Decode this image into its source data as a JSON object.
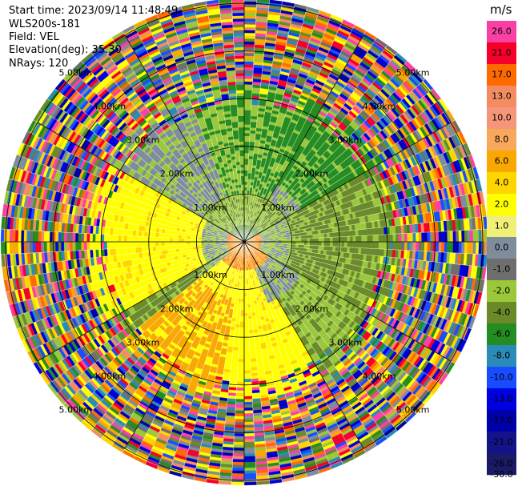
{
  "header": {
    "start_time": "Start time: 2023/09/14 11:48:49",
    "instrument": "WLS200s-181",
    "field": "Field: VEL",
    "elevation": "Elevation(deg): 35.30",
    "nrays": "NRays: 120"
  },
  "chart_data": {
    "type": "heatmap",
    "projection": "polar-ppi",
    "field": "VEL",
    "units": "m/s",
    "n_rays": 120,
    "range_rings_km": [
      1,
      2,
      3,
      4,
      5
    ],
    "ring_labels": [
      "1.00km",
      "2.00km",
      "3.00km",
      "4.00km",
      "5.00km"
    ],
    "max_range_km": 5.1,
    "spokes_every_deg": 30,
    "colorbar": {
      "ticks": [
        "26.0",
        "21.0",
        "17.0",
        "13.0",
        "10.0",
        "8.0",
        "6.0",
        "4.0",
        "2.0",
        "1.0",
        "0.0",
        "-1.0",
        "-2.0",
        "-4.0",
        "-6.0",
        "-8.0",
        "-10.0",
        "-13.0",
        "-17.0",
        "-21.0",
        "-26.0",
        "-30.0"
      ],
      "colors": [
        "#fb40a5",
        "#f5002a",
        "#ff6a00",
        "#f48c63",
        "#f5967a",
        "#f8a85a",
        "#f8a800",
        "#ffd500",
        "#ffff00",
        "#f0f078",
        "#7e8c9c",
        "#6e6e6e",
        "#9ac83a",
        "#6a8a2a",
        "#248c20",
        "#2a8ab8",
        "#1a4cff",
        "#0000e0",
        "#0000aa",
        "#14148a",
        "#1a1a66"
      ]
    }
  }
}
